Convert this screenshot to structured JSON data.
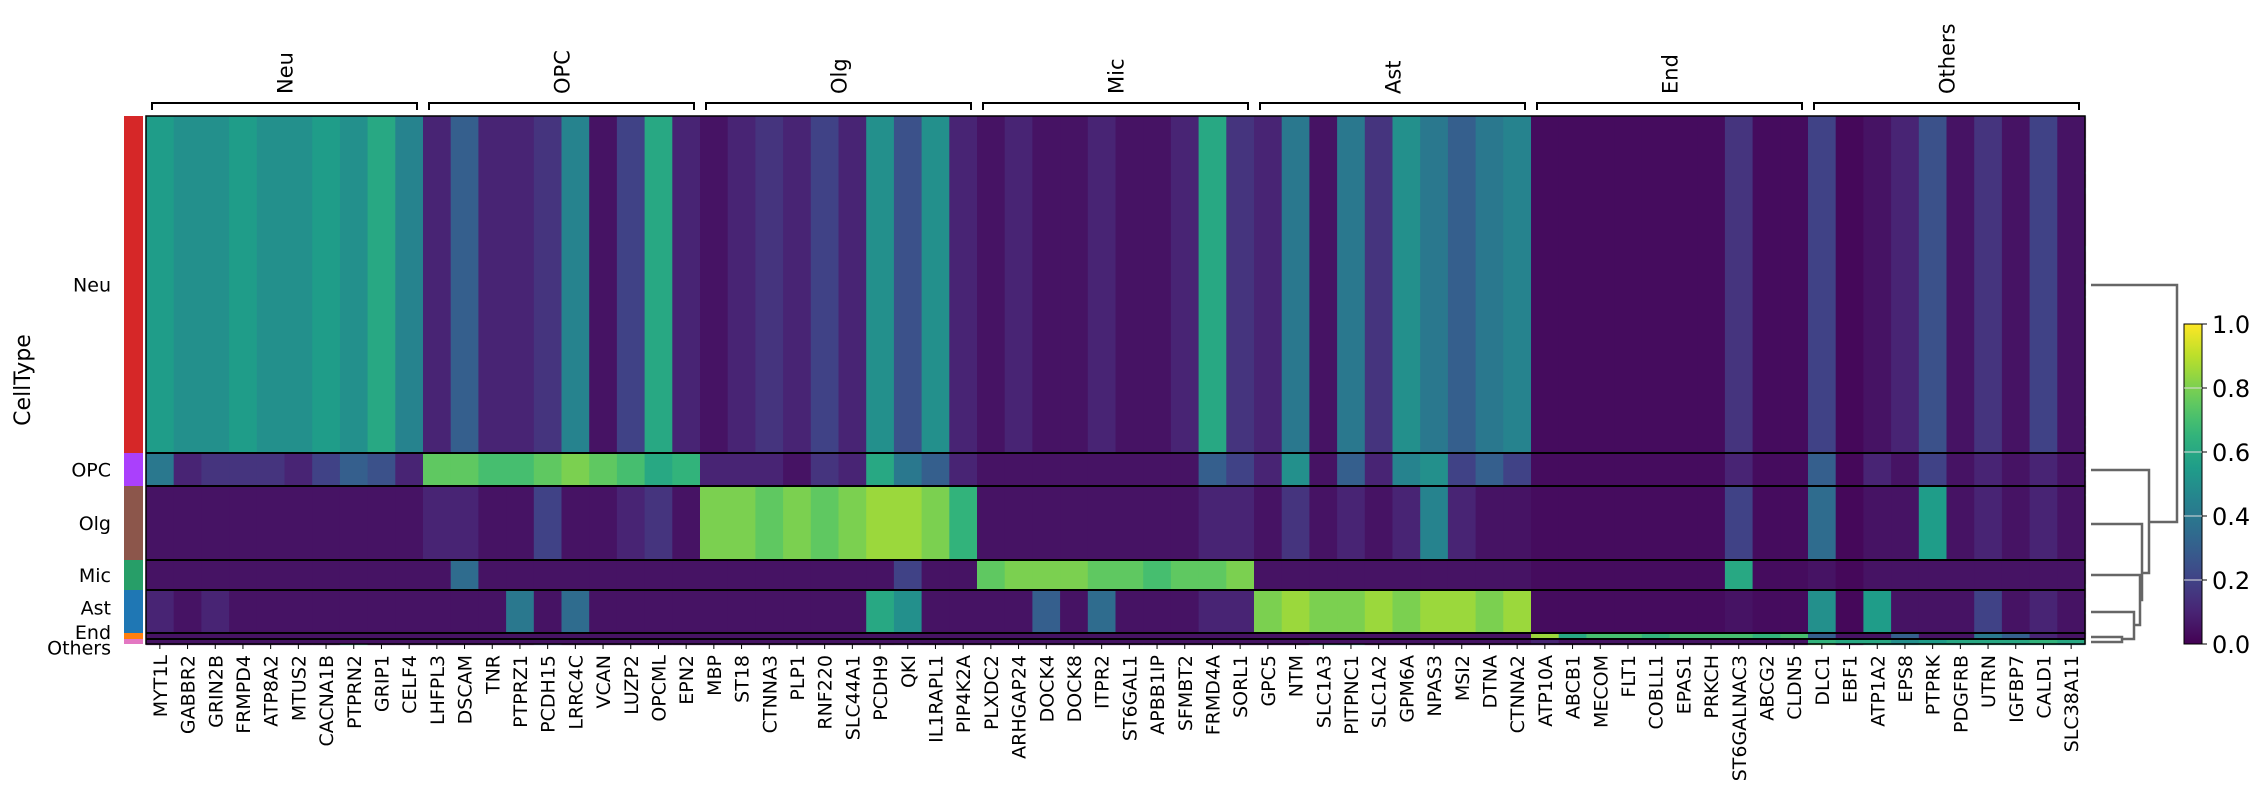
{
  "chart_data": {
    "type": "heatmap",
    "ylabel": "CellType",
    "row_groups": [
      "Neu",
      "OPC",
      "Olg",
      "Mic",
      "Ast",
      "End",
      "Others"
    ],
    "row_group_colors": {
      "Neu": "#d62728",
      "OPC": "#aa40fc",
      "Olg": "#8c564b",
      "Mic": "#279e68",
      "Ast": "#1f77b4",
      "End": "#ff7f0e",
      "Others": "#e377c2"
    },
    "row_group_cell_fraction": [
      0.636,
      0.063,
      0.14,
      0.057,
      0.081,
      0.012,
      0.01
    ],
    "column_groups": [
      {
        "label": "Neu",
        "genes": [
          "MYT1L",
          "GABBR2",
          "GRIN2B",
          "FRMPD4",
          "ATP8A2",
          "MTUS2",
          "CACNA1B",
          "PTPRN2",
          "GRIP1",
          "CELF4"
        ]
      },
      {
        "label": "OPC",
        "genes": [
          "LHFPL3",
          "DSCAM",
          "TNR",
          "PTPRZ1",
          "PCDH15",
          "LRRC4C",
          "VCAN",
          "LUZP2",
          "OPCML",
          "EPN2"
        ]
      },
      {
        "label": "Olg",
        "genes": [
          "MBP",
          "ST18",
          "CTNNA3",
          "PLP1",
          "RNF220",
          "SLC44A1",
          "PCDH9",
          "QKI",
          "IL1RAPL1",
          "PIP4K2A"
        ]
      },
      {
        "label": "Mic",
        "genes": [
          "PLXDC2",
          "ARHGAP24",
          "DOCK4",
          "DOCK8",
          "ITPR2",
          "ST6GAL1",
          "APBB1IP",
          "SFMBT2",
          "FRMD4A",
          "SORL1"
        ]
      },
      {
        "label": "Ast",
        "genes": [
          "GPC5",
          "NTM",
          "SLC1A3",
          "PITPNC1",
          "SLC1A2",
          "GPM6A",
          "NPAS3",
          "MSI2",
          "DTNA",
          "CTNNA2"
        ]
      },
      {
        "label": "End",
        "genes": [
          "ATP10A",
          "ABCB1",
          "MECOM",
          "FLT1",
          "COBLL1",
          "EPAS1",
          "PRKCH",
          "ST6GALNAC3",
          "ABCG2",
          "CLDN5"
        ]
      },
      {
        "label": "Others",
        "genes": [
          "DLC1",
          "EBF1",
          "ATP1A2",
          "EPS8",
          "PTPRK",
          "PDGFRB",
          "UTRN",
          "IGFBP7",
          "CALD1",
          "SLC38A11"
        ]
      }
    ],
    "mean_expression": {
      "Neu": [
        0.55,
        0.5,
        0.5,
        0.55,
        0.5,
        0.5,
        0.55,
        0.5,
        0.6,
        0.45,
        0.1,
        0.3,
        0.1,
        0.1,
        0.15,
        0.45,
        0.05,
        0.2,
        0.6,
        0.1,
        0.05,
        0.1,
        0.15,
        0.1,
        0.2,
        0.1,
        0.5,
        0.25,
        0.5,
        0.1,
        0.05,
        0.1,
        0.05,
        0.05,
        0.1,
        0.05,
        0.05,
        0.1,
        0.6,
        0.15,
        0.1,
        0.4,
        0.05,
        0.4,
        0.15,
        0.5,
        0.4,
        0.3,
        0.4,
        0.45,
        0.03,
        0.03,
        0.03,
        0.03,
        0.03,
        0.03,
        0.03,
        0.15,
        0.03,
        0.03,
        0.2,
        0.02,
        0.05,
        0.1,
        0.25,
        0.05,
        0.15,
        0.05,
        0.2,
        0.05
      ],
      "OPC": [
        0.4,
        0.1,
        0.15,
        0.15,
        0.15,
        0.1,
        0.2,
        0.3,
        0.25,
        0.1,
        0.75,
        0.75,
        0.7,
        0.7,
        0.75,
        0.8,
        0.75,
        0.7,
        0.6,
        0.65,
        0.1,
        0.1,
        0.1,
        0.05,
        0.15,
        0.1,
        0.6,
        0.4,
        0.3,
        0.1,
        0.05,
        0.05,
        0.05,
        0.05,
        0.05,
        0.05,
        0.05,
        0.05,
        0.3,
        0.2,
        0.1,
        0.5,
        0.05,
        0.3,
        0.1,
        0.45,
        0.5,
        0.2,
        0.3,
        0.2,
        0.03,
        0.03,
        0.03,
        0.03,
        0.03,
        0.03,
        0.03,
        0.1,
        0.03,
        0.03,
        0.3,
        0.02,
        0.1,
        0.05,
        0.2,
        0.05,
        0.1,
        0.05,
        0.1,
        0.05
      ],
      "Olg": [
        0.05,
        0.05,
        0.05,
        0.05,
        0.05,
        0.05,
        0.05,
        0.05,
        0.05,
        0.05,
        0.1,
        0.1,
        0.05,
        0.05,
        0.2,
        0.05,
        0.05,
        0.1,
        0.15,
        0.05,
        0.8,
        0.8,
        0.75,
        0.8,
        0.75,
        0.8,
        0.85,
        0.85,
        0.8,
        0.65,
        0.05,
        0.05,
        0.05,
        0.05,
        0.05,
        0.05,
        0.05,
        0.05,
        0.1,
        0.1,
        0.05,
        0.15,
        0.05,
        0.1,
        0.05,
        0.1,
        0.45,
        0.1,
        0.05,
        0.05,
        0.03,
        0.03,
        0.03,
        0.03,
        0.03,
        0.03,
        0.03,
        0.2,
        0.03,
        0.03,
        0.35,
        0.02,
        0.05,
        0.05,
        0.55,
        0.05,
        0.1,
        0.05,
        0.1,
        0.05
      ],
      "Mic": [
        0.05,
        0.05,
        0.05,
        0.05,
        0.05,
        0.05,
        0.05,
        0.05,
        0.05,
        0.05,
        0.05,
        0.35,
        0.05,
        0.05,
        0.05,
        0.05,
        0.05,
        0.05,
        0.05,
        0.05,
        0.05,
        0.05,
        0.05,
        0.05,
        0.05,
        0.05,
        0.05,
        0.2,
        0.05,
        0.05,
        0.75,
        0.8,
        0.8,
        0.8,
        0.75,
        0.75,
        0.7,
        0.75,
        0.75,
        0.8,
        0.05,
        0.05,
        0.05,
        0.05,
        0.05,
        0.05,
        0.05,
        0.05,
        0.05,
        0.05,
        0.03,
        0.03,
        0.03,
        0.03,
        0.03,
        0.03,
        0.03,
        0.6,
        0.03,
        0.03,
        0.05,
        0.02,
        0.05,
        0.05,
        0.05,
        0.05,
        0.05,
        0.05,
        0.05,
        0.05
      ],
      "Ast": [
        0.1,
        0.05,
        0.1,
        0.05,
        0.05,
        0.05,
        0.05,
        0.05,
        0.05,
        0.05,
        0.05,
        0.05,
        0.05,
        0.4,
        0.05,
        0.35,
        0.05,
        0.05,
        0.05,
        0.05,
        0.05,
        0.05,
        0.05,
        0.05,
        0.05,
        0.05,
        0.6,
        0.5,
        0.05,
        0.05,
        0.05,
        0.05,
        0.3,
        0.05,
        0.35,
        0.05,
        0.05,
        0.05,
        0.1,
        0.1,
        0.8,
        0.85,
        0.8,
        0.8,
        0.85,
        0.8,
        0.85,
        0.85,
        0.8,
        0.85,
        0.03,
        0.03,
        0.03,
        0.03,
        0.03,
        0.03,
        0.03,
        0.05,
        0.03,
        0.03,
        0.5,
        0.02,
        0.55,
        0.05,
        0.05,
        0.05,
        0.2,
        0.05,
        0.1,
        0.05
      ],
      "End": [
        0.05,
        0.05,
        0.05,
        0.05,
        0.05,
        0.05,
        0.05,
        0.05,
        0.05,
        0.05,
        0.05,
        0.05,
        0.05,
        0.05,
        0.05,
        0.05,
        0.05,
        0.05,
        0.05,
        0.05,
        0.05,
        0.05,
        0.05,
        0.05,
        0.05,
        0.05,
        0.05,
        0.05,
        0.05,
        0.05,
        0.05,
        0.05,
        0.05,
        0.05,
        0.05,
        0.05,
        0.05,
        0.05,
        0.05,
        0.05,
        0.05,
        0.05,
        0.05,
        0.05,
        0.05,
        0.05,
        0.05,
        0.05,
        0.05,
        0.05,
        0.85,
        0.6,
        0.7,
        0.7,
        0.65,
        0.7,
        0.7,
        0.7,
        0.65,
        0.7,
        0.3,
        0.05,
        0.05,
        0.3,
        0.05,
        0.05,
        0.4,
        0.3,
        0.1,
        0.05
      ],
      "Others": [
        0.05,
        0.05,
        0.05,
        0.05,
        0.05,
        0.05,
        0.05,
        0.05,
        0.05,
        0.05,
        0.05,
        0.05,
        0.05,
        0.05,
        0.05,
        0.05,
        0.05,
        0.05,
        0.05,
        0.05,
        0.05,
        0.05,
        0.05,
        0.05,
        0.05,
        0.05,
        0.05,
        0.05,
        0.05,
        0.05,
        0.05,
        0.05,
        0.05,
        0.05,
        0.05,
        0.05,
        0.05,
        0.05,
        0.05,
        0.05,
        0.05,
        0.05,
        0.05,
        0.05,
        0.05,
        0.05,
        0.05,
        0.05,
        0.05,
        0.05,
        0.1,
        0.05,
        0.05,
        0.05,
        0.05,
        0.05,
        0.05,
        0.05,
        0.05,
        0.05,
        0.65,
        0.6,
        0.6,
        0.5,
        0.55,
        0.6,
        0.6,
        0.6,
        0.65,
        0.6
      ]
    },
    "colorbar": {
      "colormap": "viridis",
      "range": [
        0.0,
        1.0
      ],
      "ticks": [
        "0.0",
        "0.2",
        "0.4",
        "0.6",
        "0.8",
        "1.0"
      ]
    },
    "dendrogram": "Neu | (OPC | (Olg | (Mic | (Ast | (End, Others)))))"
  }
}
